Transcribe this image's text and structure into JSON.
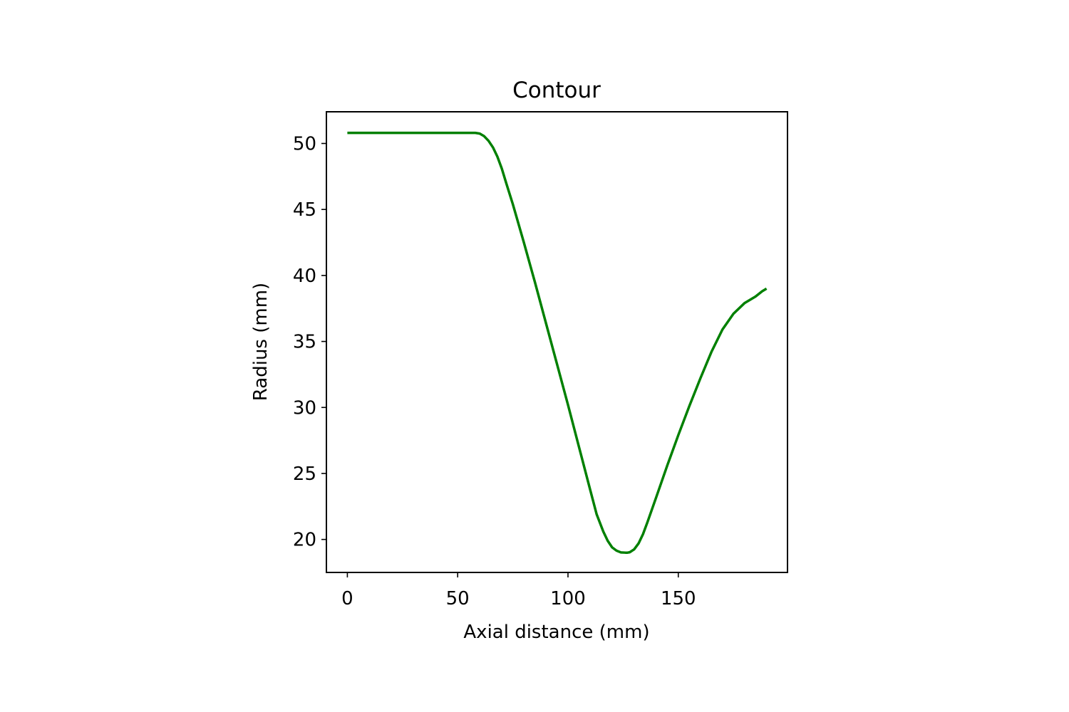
{
  "chart_data": {
    "type": "line",
    "title": "Contour",
    "xlabel": "Axial distance (mm)",
    "ylabel": "Radius (mm)",
    "xlim": [
      -9.5,
      199.5
    ],
    "ylim": [
      17.5,
      52.4
    ],
    "xticks": [
      0,
      50,
      100,
      150
    ],
    "yticks": [
      20,
      25,
      30,
      35,
      40,
      45,
      50
    ],
    "grid": false,
    "legend": "none",
    "series": [
      {
        "color": "#008000",
        "x": [
          0,
          10,
          20,
          30,
          40,
          50,
          58,
          60,
          62,
          64,
          66,
          68,
          70,
          72,
          75,
          80,
          85,
          90,
          95,
          100,
          105,
          110,
          113,
          116,
          118,
          120,
          122,
          124,
          126,
          127,
          128,
          130,
          132,
          134,
          136,
          140,
          145,
          150,
          155,
          160,
          165,
          170,
          175,
          180,
          185,
          188,
          190
        ],
        "y": [
          50.8,
          50.8,
          50.8,
          50.8,
          50.8,
          50.8,
          50.8,
          50.75,
          50.55,
          50.2,
          49.7,
          49.0,
          48.1,
          47.0,
          45.4,
          42.5,
          39.5,
          36.4,
          33.3,
          30.2,
          27.0,
          23.8,
          21.9,
          20.6,
          19.9,
          19.4,
          19.15,
          19.02,
          19.0,
          19.0,
          19.03,
          19.25,
          19.7,
          20.4,
          21.3,
          23.2,
          25.6,
          27.9,
          30.1,
          32.2,
          34.2,
          35.9,
          37.1,
          37.9,
          38.4,
          38.8,
          39.0
        ]
      }
    ]
  }
}
